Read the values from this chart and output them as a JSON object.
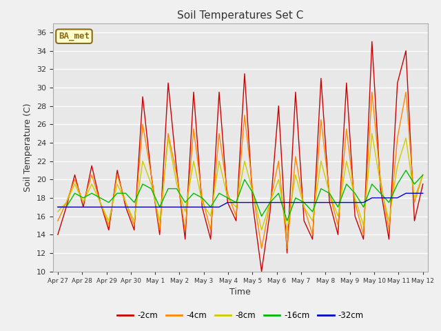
{
  "title": "Soil Temperatures Set C",
  "xlabel": "Time",
  "ylabel": "Soil Temperature (C)",
  "ylim": [
    10,
    37
  ],
  "yticks": [
    10,
    12,
    14,
    16,
    18,
    20,
    22,
    24,
    26,
    28,
    30,
    32,
    34,
    36
  ],
  "fig_bg_color": "#f0f0f0",
  "plot_bg_color": "#e8e8e8",
  "grid_color": "#ffffff",
  "annotation_text": "BA_met",
  "annotation_bg": "#ffffcc",
  "annotation_border": "#8b6914",
  "colors": {
    "-2cm": "#cc0000",
    "-4cm": "#ff8800",
    "-8cm": "#cccc00",
    "-16cm": "#00bb00",
    "-32cm": "#0000cc"
  },
  "x_labels": [
    "Apr 27",
    "Apr 28",
    "Apr 29",
    "Apr 30",
    "May 1",
    "May 2",
    "May 3",
    "May 4",
    "May 5",
    "May 6",
    "May 7",
    "May 8",
    "May 9",
    "May 10",
    "May 11",
    "May 12"
  ],
  "series": {
    "-2cm": [
      14.0,
      17.0,
      20.5,
      17.0,
      21.5,
      17.5,
      14.5,
      21.0,
      17.0,
      14.5,
      29.0,
      20.5,
      14.0,
      30.5,
      21.0,
      13.5,
      29.5,
      17.0,
      13.5,
      29.5,
      17.5,
      15.5,
      31.5,
      17.0,
      10.0,
      16.5,
      28.0,
      12.0,
      29.5,
      15.5,
      13.5,
      31.0,
      17.5,
      14.0,
      30.5,
      16.0,
      13.5,
      35.0,
      19.0,
      13.5,
      30.5,
      34.0,
      15.5,
      19.5
    ],
    "-4cm": [
      15.5,
      17.5,
      20.0,
      17.5,
      20.5,
      17.5,
      15.0,
      20.5,
      17.5,
      15.0,
      26.0,
      20.5,
      14.5,
      25.0,
      20.5,
      14.5,
      25.5,
      18.0,
      14.5,
      25.0,
      18.5,
      16.0,
      27.0,
      18.5,
      12.5,
      17.5,
      22.0,
      12.5,
      22.5,
      17.0,
      14.0,
      26.5,
      18.5,
      15.0,
      25.5,
      17.5,
      14.0,
      29.5,
      20.0,
      14.5,
      24.5,
      29.5,
      17.5,
      20.5
    ],
    "-8cm": [
      16.5,
      17.5,
      19.5,
      17.5,
      19.5,
      17.5,
      15.5,
      19.5,
      17.5,
      15.5,
      22.0,
      19.5,
      15.5,
      24.5,
      19.5,
      16.5,
      22.0,
      17.5,
      16.0,
      22.0,
      18.0,
      17.0,
      22.0,
      18.5,
      14.5,
      17.5,
      20.0,
      14.5,
      20.5,
      17.0,
      15.5,
      22.0,
      18.5,
      16.0,
      22.0,
      18.0,
      15.0,
      25.0,
      19.5,
      15.5,
      21.5,
      24.5,
      18.0,
      20.5
    ],
    "-16cm": [
      17.0,
      17.0,
      18.5,
      18.0,
      18.5,
      18.0,
      17.5,
      18.5,
      18.5,
      17.5,
      19.5,
      19.0,
      17.0,
      19.0,
      19.0,
      17.5,
      18.5,
      18.0,
      17.0,
      18.5,
      18.0,
      17.5,
      20.0,
      18.5,
      16.0,
      17.5,
      18.5,
      15.5,
      18.0,
      17.5,
      16.5,
      19.0,
      18.5,
      17.0,
      19.5,
      18.5,
      17.0,
      19.5,
      18.5,
      17.5,
      19.5,
      21.0,
      19.5,
      20.5
    ],
    "-32cm": [
      17.0,
      17.0,
      17.0,
      17.0,
      17.0,
      17.0,
      17.0,
      17.0,
      17.0,
      17.0,
      17.0,
      17.0,
      17.0,
      17.0,
      17.0,
      17.0,
      17.0,
      17.0,
      17.0,
      17.0,
      17.5,
      17.5,
      17.5,
      17.5,
      17.5,
      17.5,
      17.5,
      17.5,
      17.5,
      17.5,
      17.5,
      17.5,
      17.5,
      17.5,
      17.5,
      17.5,
      17.5,
      18.0,
      18.0,
      18.0,
      18.0,
      18.5,
      18.5,
      18.5
    ]
  },
  "legend_order": [
    "-2cm",
    "-4cm",
    "-8cm",
    "-16cm",
    "-32cm"
  ]
}
